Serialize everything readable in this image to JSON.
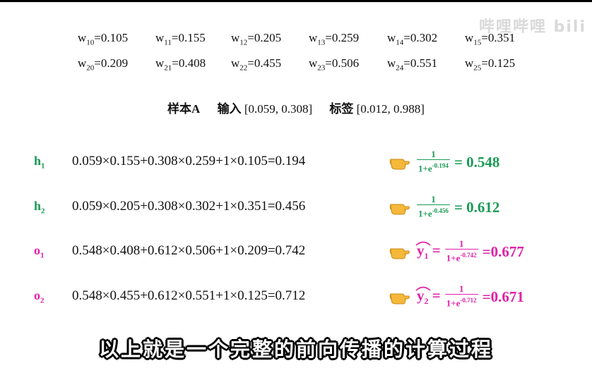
{
  "watermark": "哔哩哔哩 bili",
  "weights": {
    "row1": [
      {
        "sym": "w",
        "sub": "10",
        "val": "=0.105"
      },
      {
        "sym": "w",
        "sub": "11",
        "val": "=0.155"
      },
      {
        "sym": "w",
        "sub": "12",
        "val": "=0.205"
      },
      {
        "sym": "w",
        "sub": "13",
        "val": "=0.259"
      },
      {
        "sym": "w",
        "sub": "14",
        "val": "=0.302"
      },
      {
        "sym": "w",
        "sub": "15",
        "val": "=0.351"
      }
    ],
    "row2": [
      {
        "sym": "w",
        "sub": "20",
        "val": "=0.209"
      },
      {
        "sym": "w",
        "sub": "21",
        "val": "=0.408"
      },
      {
        "sym": "w",
        "sub": "22",
        "val": "=0.455"
      },
      {
        "sym": "w",
        "sub": "23",
        "val": "=0.506"
      },
      {
        "sym": "w",
        "sub": "24",
        "val": "=0.551"
      },
      {
        "sym": "w",
        "sub": "25",
        "val": "=0.125"
      }
    ]
  },
  "sample": {
    "name": "样本A",
    "input_label": "输入",
    "input_value": "[0.059, 0.308]",
    "label_label": "标签",
    "label_value": "[0.012, 0.988]"
  },
  "rows": [
    {
      "var": "h",
      "sub": "1",
      "expr": "0.059×0.155+0.308×0.259+1×0.105=0.194",
      "num": "1",
      "den": "1+e",
      "exp": "-0.194",
      "result": "= 0.548",
      "color": "#1a9b55"
    },
    {
      "var": "h",
      "sub": "2",
      "expr": "0.059×0.205+0.308×0.302+1×0.351=0.456",
      "num": "1",
      "den": "1+e",
      "exp": "-0.456",
      "result": "= 0.612",
      "color": "#1a9b55"
    },
    {
      "var": "o",
      "sub": "1",
      "expr": "0.548×0.408+0.612×0.506+1×0.209=0.742",
      "yhat": "y",
      "ysub": "1",
      "num": "1",
      "den": "1+e",
      "exp": "-0.742",
      "result": "=0.677",
      "color": "#e020a8"
    },
    {
      "var": "o",
      "sub": "2",
      "expr": "0.548×0.455+0.612×0.551+1×0.125=0.712",
      "yhat": "y",
      "ysub": "2",
      "num": "1",
      "den": "1+e",
      "exp": "-0.712",
      "result": "=0.671",
      "color": "#e020a8"
    }
  ],
  "subtitle": "以上就是一个完整的前向传播的计算过程",
  "icons": {
    "hand": "pointing-hand-icon"
  }
}
